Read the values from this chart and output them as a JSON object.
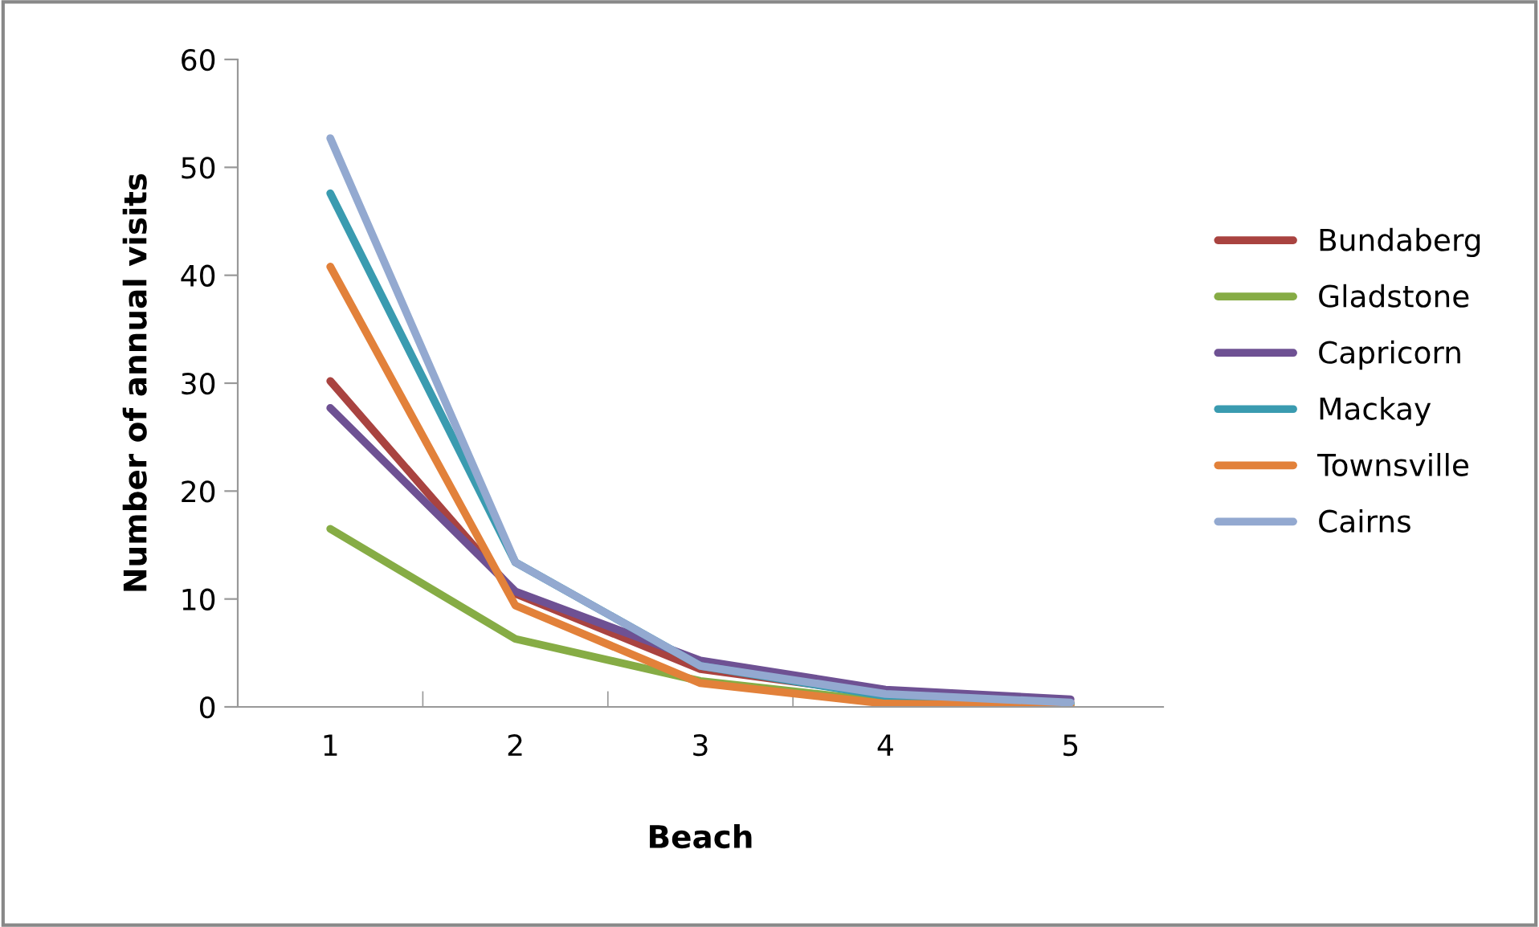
{
  "chart_data": {
    "type": "line",
    "xlabel": "Beach",
    "ylabel": "Number of annual visits",
    "categories": [
      "1",
      "2",
      "3",
      "4",
      "5"
    ],
    "ylim": [
      0,
      60
    ],
    "yticks": [
      0,
      10,
      20,
      30,
      40,
      50,
      60
    ],
    "grid": false,
    "legend": "right",
    "marker": "none",
    "line_style": "solid",
    "series": [
      {
        "name": "Bundaberg",
        "color": "#a94340",
        "values": [
          30.2,
          10.5,
          3.5,
          1.2,
          0.4
        ]
      },
      {
        "name": "Gladstone",
        "color": "#86ac45",
        "values": [
          16.5,
          6.3,
          2.4,
          0.5,
          0.2
        ]
      },
      {
        "name": "Capricorn",
        "color": "#6e5193",
        "values": [
          27.7,
          10.7,
          4.3,
          1.6,
          0.7
        ]
      },
      {
        "name": "Mackay",
        "color": "#3a9bb0",
        "values": [
          47.6,
          13.4,
          3.8,
          1.0,
          0.3
        ]
      },
      {
        "name": "Townsville",
        "color": "#e2813a",
        "values": [
          40.8,
          9.4,
          2.2,
          0.3,
          0.1
        ]
      },
      {
        "name": "Cairns",
        "color": "#93a9d0",
        "values": [
          52.7,
          13.4,
          3.8,
          1.2,
          0.4
        ]
      }
    ]
  }
}
